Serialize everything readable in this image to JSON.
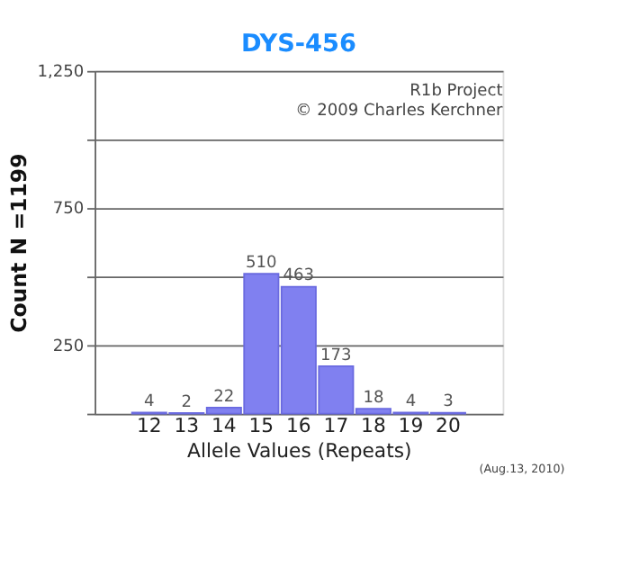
{
  "chart_data": {
    "type": "bar",
    "title": "DYS-456",
    "xlabel": "Allele Values (Repeats)",
    "ylabel": "Count N =1199",
    "categories": [
      "12",
      "13",
      "14",
      "15",
      "16",
      "17",
      "18",
      "19",
      "20"
    ],
    "values": [
      4,
      2,
      22,
      510,
      463,
      173,
      18,
      4,
      3
    ],
    "color": "#8080f0",
    "data_labels": true,
    "ylim": [
      0,
      1250
    ],
    "yticks": [
      {
        "value": 0,
        "label": null
      },
      250,
      {
        "value": 500,
        "label": null
      },
      750,
      {
        "value": 1000,
        "label": null
      },
      {
        "value": 1250,
        "label": "1,250"
      }
    ],
    "grid": "y",
    "annotations": [
      "R1b Project",
      "© 2009 Charles Kerchner",
      "(Aug.13, 2010)"
    ]
  }
}
